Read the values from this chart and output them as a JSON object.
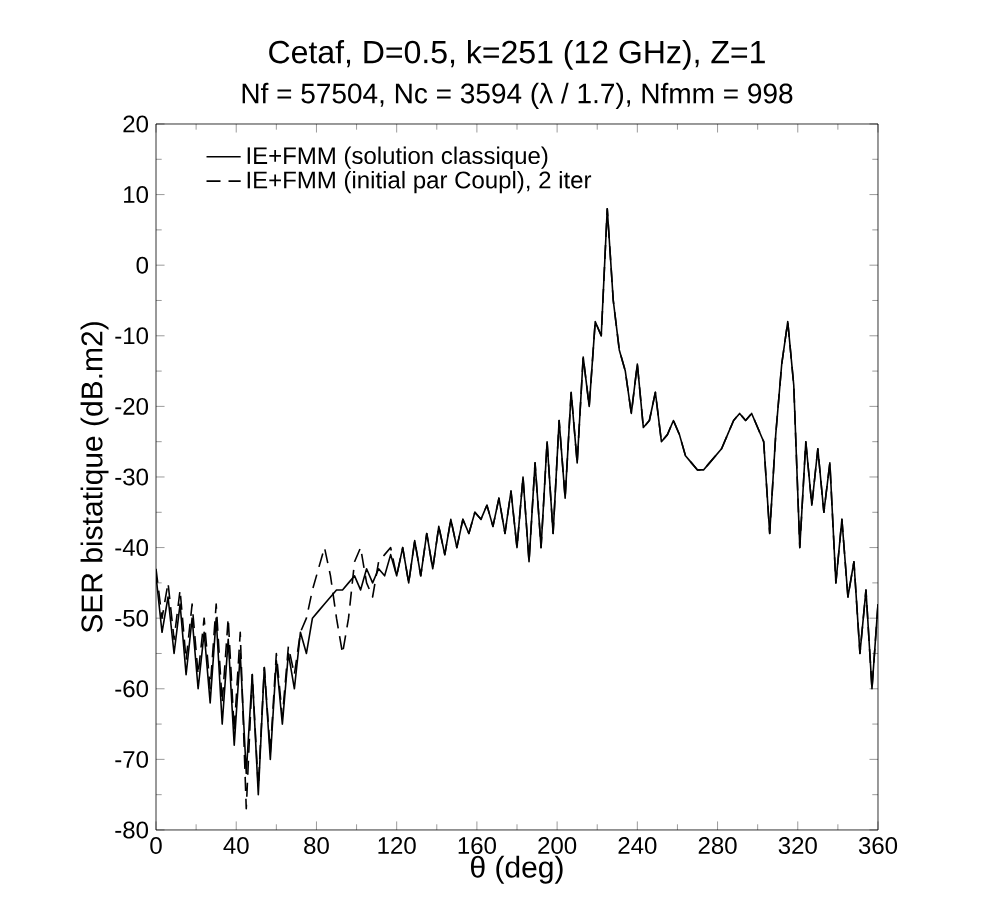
{
  "chart_data": {
    "type": "line",
    "title": "Cetaf, D=0.5, k=251 (12 GHz), Z=1",
    "subtitle": "Nf = 57504, Nc = 3594 (λ / 1.7), Nfmm = 998",
    "xlabel": "θ (deg)",
    "ylabel": "SER bistatique (dB.m2)",
    "x": [
      0,
      3,
      6,
      9,
      12,
      15,
      18,
      21,
      24,
      27,
      30,
      33,
      36,
      39,
      42,
      45,
      48,
      51,
      54,
      57,
      60,
      63,
      66,
      69,
      72,
      75,
      78,
      81,
      84,
      87,
      90,
      93,
      96,
      99,
      102,
      105,
      108,
      111,
      114,
      117,
      120,
      123,
      126,
      129,
      132,
      135,
      138,
      141,
      144,
      147,
      150,
      153,
      156,
      159,
      162,
      165,
      168,
      171,
      174,
      177,
      180,
      183,
      186,
      189,
      192,
      195,
      198,
      201,
      204,
      207,
      210,
      213,
      216,
      219,
      222,
      225,
      228,
      231,
      234,
      237,
      240,
      243,
      246,
      249,
      252,
      255,
      258,
      261,
      264,
      267,
      270,
      273,
      276,
      279,
      282,
      285,
      288,
      291,
      294,
      297,
      300,
      303,
      306,
      309,
      312,
      315,
      318,
      321,
      324,
      327,
      330,
      333,
      336,
      339,
      342,
      345,
      348,
      351,
      354,
      357,
      360
    ],
    "series": [
      {
        "name": "IE+FMM (solution classique)",
        "color": "#000000",
        "line_style": "solid",
        "values": [
          -44,
          -52,
          -47,
          -55,
          -48,
          -58,
          -50,
          -60,
          -52,
          -62,
          -50,
          -65,
          -53,
          -68,
          -55,
          -72,
          -58,
          -75,
          -57,
          -70,
          -56,
          -65,
          -55,
          -60,
          -52,
          -55,
          -50,
          -49,
          -48,
          -47,
          -46,
          -46,
          -45,
          -44,
          -46,
          -43,
          -45,
          -43,
          -44,
          -41,
          -44,
          -40,
          -45,
          -39,
          -44,
          -38,
          -43,
          -37,
          -41,
          -36,
          -40,
          -36,
          -38,
          -35,
          -36,
          -34,
          -37,
          -33,
          -38,
          -32,
          -40,
          -30,
          -42,
          -28,
          -40,
          -25,
          -38,
          -22,
          -33,
          -18,
          -28,
          -13,
          -20,
          -8,
          -10,
          8,
          -5,
          -12,
          -15,
          -21,
          -14,
          -23,
          -22,
          -18,
          -25,
          -24,
          -22,
          -24,
          -27,
          -28,
          -29,
          -29,
          -28,
          -27,
          -26,
          -24,
          -22,
          -21,
          -22,
          -21,
          -23,
          -25,
          -38,
          -24,
          -14,
          -8,
          -17,
          -40,
          -25,
          -34,
          -26,
          -35,
          -28,
          -45,
          -36,
          -47,
          -42,
          -55,
          -46,
          -60,
          -48
        ]
      },
      {
        "name": "IE+FMM (initial par Coupl), 2 iter",
        "color": "#000000",
        "line_style": "dashed",
        "values": [
          -43,
          -50,
          -45,
          -53,
          -46,
          -56,
          -48,
          -58,
          -50,
          -60,
          -48,
          -62,
          -50,
          -66,
          -52,
          -77,
          -58,
          -74,
          -57,
          -69,
          -55,
          -64,
          -54,
          -58,
          -52,
          -50,
          -46,
          -43,
          -40,
          -44,
          -50,
          -55,
          -50,
          -42,
          -40,
          -45,
          -47,
          -42,
          -41,
          -40,
          -44,
          -40,
          -45,
          -39,
          -44,
          -38,
          -43,
          -37,
          -41,
          -36,
          -40,
          -36,
          -38,
          -35,
          -36,
          -34,
          -37,
          -33,
          -38,
          -32,
          -40,
          -30,
          -42,
          -28,
          -40,
          -25,
          -38,
          -22,
          -33,
          -18,
          -28,
          -13,
          -20,
          -8,
          -10,
          8,
          -5,
          -12,
          -15,
          -21,
          -14,
          -23,
          -22,
          -18,
          -25,
          -24,
          -22,
          -24,
          -27,
          -28,
          -29,
          -29,
          -28,
          -27,
          -26,
          -24,
          -22,
          -21,
          -22,
          -21,
          -23,
          -25,
          -38,
          -24,
          -14,
          -8,
          -17,
          -40,
          -25,
          -34,
          -26,
          -35,
          -28,
          -45,
          -36,
          -47,
          -42,
          -55,
          -46,
          -60,
          -48
        ]
      }
    ],
    "xlim": [
      0,
      360
    ],
    "xticks": [
      0,
      40,
      80,
      120,
      160,
      200,
      240,
      280,
      320,
      360
    ],
    "ylim": [
      -80,
      20
    ],
    "yticks": [
      -80,
      -70,
      -60,
      -50,
      -40,
      -30,
      -20,
      -10,
      0,
      10,
      20
    ],
    "grid": false,
    "legend": "top left",
    "marker": "none"
  }
}
